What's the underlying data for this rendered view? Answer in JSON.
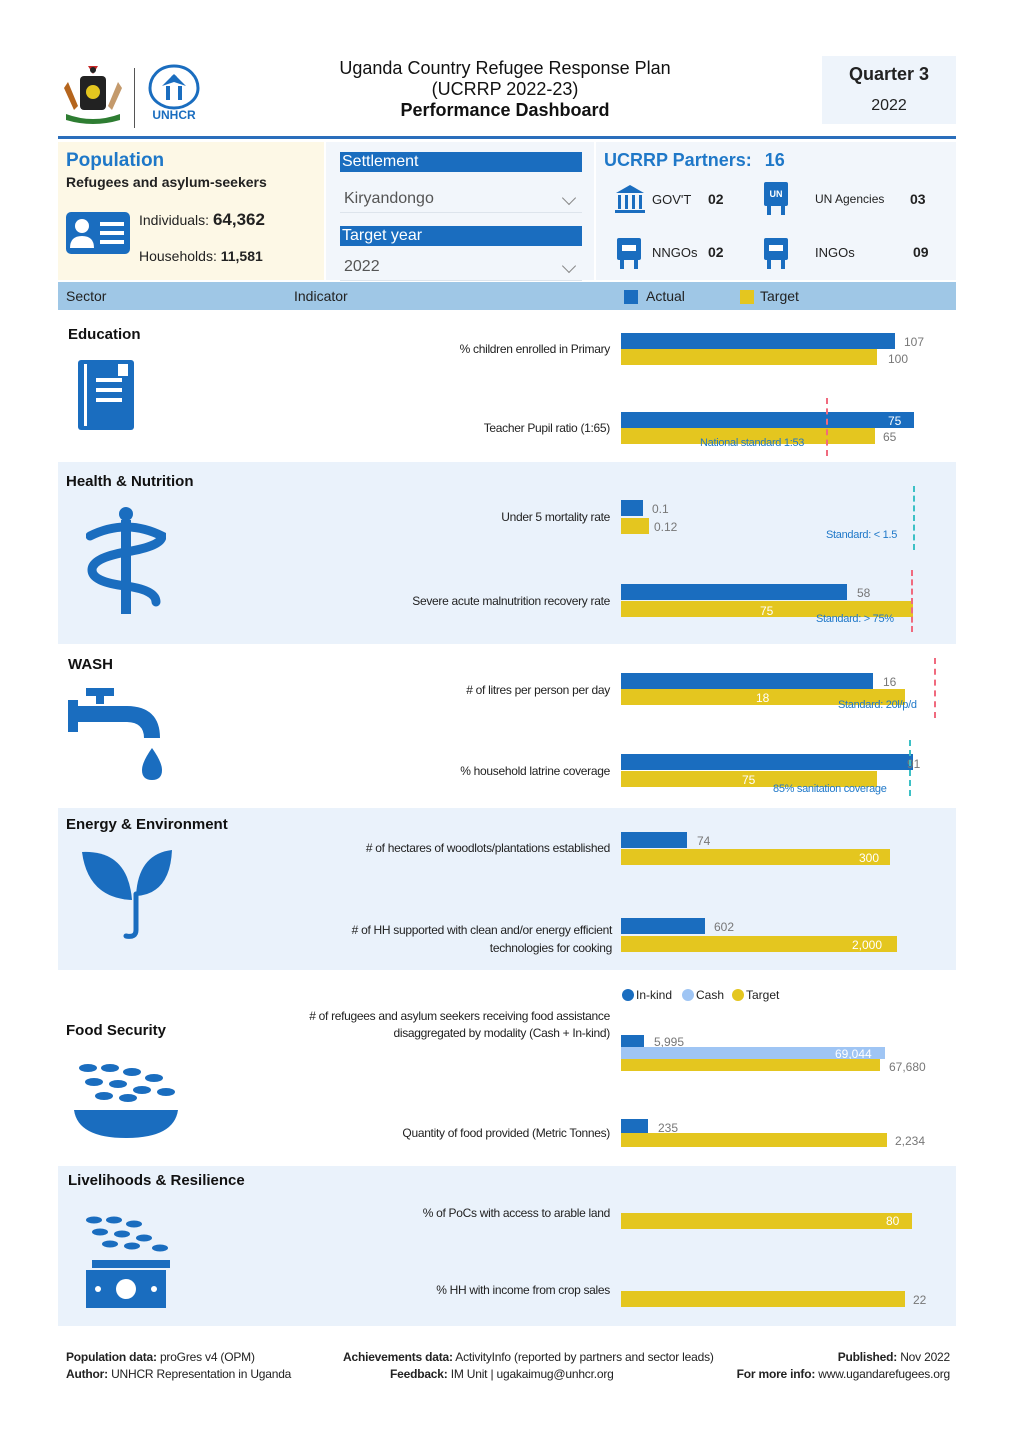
{
  "header": {
    "title_line1": "Uganda Country Refugee Response Plan",
    "title_line2": "(UCRRP 2022-23)",
    "title_line3": "Performance Dashboard",
    "quarter": "Quarter 3",
    "year": "2022",
    "unhcr_logo_text": "UNHCR",
    "colors": {
      "primary": "#1a6dbf",
      "target": "#e4c61f",
      "cash": "#9fc5f4",
      "band": "#eaf2fb",
      "header_bar": "#9fc7e6"
    }
  },
  "population": {
    "title": "Population",
    "subtitle": "Refugees and asylum-seekers",
    "individuals_label": "Individuals:",
    "individuals_value": "64,362",
    "households_label": "Households:",
    "households_value": "11,581"
  },
  "filters": {
    "settlement_label": "Settlement",
    "settlement_value": "Kiryandongo",
    "year_label": "Target year",
    "year_value": "2022"
  },
  "partners": {
    "title": "UCRRP Partners:",
    "total": "16",
    "items": [
      {
        "label": "GOV'T",
        "value": "02"
      },
      {
        "label": "UN Agencies",
        "value": "03"
      },
      {
        "label": "NNGOs",
        "value": "02"
      },
      {
        "label": "INGOs",
        "value": "09"
      }
    ]
  },
  "table_header": {
    "sector": "Sector",
    "indicator": "Indicator",
    "actual": "Actual",
    "target": "Target"
  },
  "sectors": {
    "education": {
      "title": "Education",
      "ind1": {
        "label": "% children enrolled in Primary",
        "actual": "107",
        "target": "100"
      },
      "ind2": {
        "label": "Teacher Pupil ratio (1:65)",
        "actual": "75",
        "target": "65",
        "standard": "National standard 1:53"
      }
    },
    "health": {
      "title": "Health & Nutrition",
      "ind1": {
        "label": "Under 5 mortality rate",
        "actual": "0.1",
        "target": "0.12",
        "standard": "Standard: < 1.5"
      },
      "ind2": {
        "label": "Severe acute malnutrition recovery rate",
        "actual": "58",
        "target": "75",
        "standard": "Standard: > 75%"
      }
    },
    "wash": {
      "title": "WASH",
      "ind1": {
        "label": "# of litres per person per day",
        "actual": "16",
        "target": "18",
        "standard": "Standard: 20l/p/d"
      },
      "ind2": {
        "label": "% household latrine coverage",
        "actual": "91",
        "target": "75",
        "standard": "85% sanitation coverage"
      }
    },
    "energy": {
      "title": "Energy & Environment",
      "ind1": {
        "label": "# of hectares of woodlots/plantations established",
        "actual": "74",
        "target": "300"
      },
      "ind2": {
        "label_line1": "# of HH supported with clean and/or energy efficient",
        "label_line2": "technologies for cooking",
        "actual": "602",
        "target": "2,000"
      }
    },
    "food": {
      "title": "Food Security",
      "legend": {
        "inkind": "In-kind",
        "cash": "Cash",
        "target": "Target"
      },
      "ind1": {
        "label_line1": "# of refugees and asylum seekers receiving food assistance",
        "label_line2": "disaggregated by modality (Cash + In-kind)",
        "inkind": "5,995",
        "cash": "69,044",
        "target": "67,680"
      },
      "ind2": {
        "label": "Quantity of food provided (Metric Tonnes)",
        "actual": "235",
        "target": "2,234"
      }
    },
    "livelihoods": {
      "title": "Livelihoods & Resilience",
      "ind1": {
        "label": "% of PoCs with access to arable land",
        "target": "80"
      },
      "ind2": {
        "label": "% HH with income from crop sales",
        "target": "22"
      }
    }
  },
  "footer": {
    "pop_label": "Population data:",
    "pop_value": "proGres v4 (OPM)",
    "author_label": "Author:",
    "author_value": "UNHCR Representation in Uganda",
    "ach_label": "Achievements data:",
    "ach_value": "ActivityInfo (reported by partners and sector leads)",
    "feedback_label": "Feedback:",
    "feedback_value": "IM Unit | ugakaimug@unhcr.org",
    "pub_label": "Published:",
    "pub_value": "Nov 2022",
    "info_label": "For more info:",
    "info_value": "www.ugandarefugees.org"
  }
}
